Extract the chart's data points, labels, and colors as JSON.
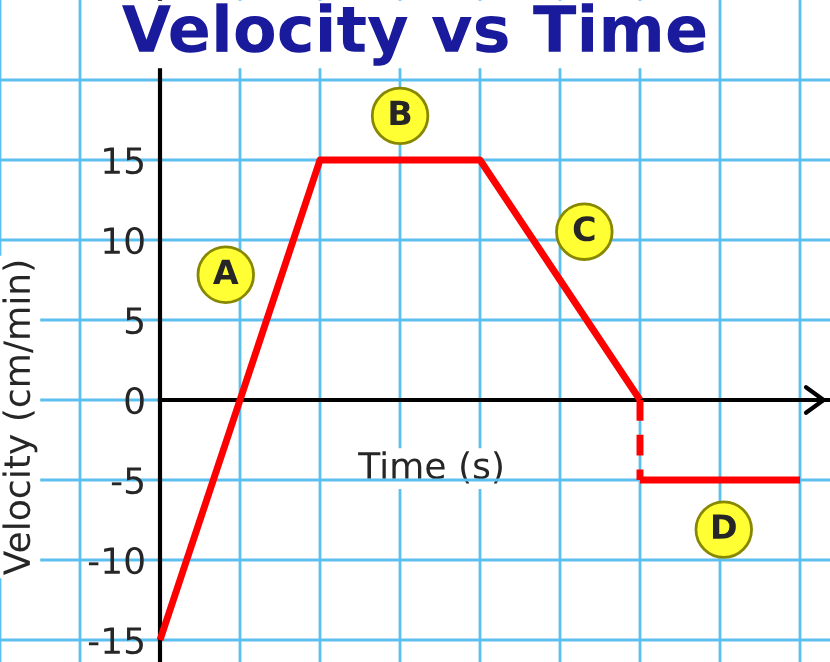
{
  "chart_data": {
    "type": "line",
    "title": "Velocity vs Time",
    "xlabel": "Time (s)",
    "ylabel": "Velocity (cm/min)",
    "categories": [
      null,
      null,
      null,
      null,
      null,
      null,
      null,
      null,
      null
    ],
    "ylim": [
      -16.375,
      25
    ],
    "yticks": [
      -15,
      -10,
      -5,
      0,
      5,
      10,
      15,
      {
        "value": 20,
        "label": null
      }
    ],
    "grid": true,
    "series": [
      {
        "color": "#ff0000",
        "values": [
          -15,
          0,
          15,
          15,
          15,
          7.5,
          0,
          null,
          null
        ],
        "line_style": "solid"
      },
      {
        "color": "#ff0000",
        "values": [
          null,
          null,
          null,
          null,
          null,
          null,
          -5,
          -5,
          -5
        ],
        "line_style": "solid"
      }
    ],
    "annotations": [
      "A",
      "B",
      "C",
      "D"
    ]
  }
}
